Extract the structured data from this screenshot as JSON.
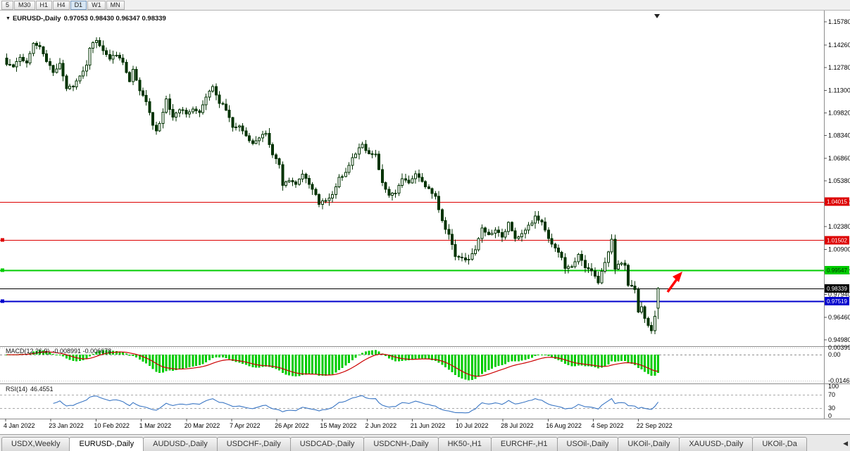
{
  "toolbar": {
    "timeframes": [
      {
        "label": "5",
        "active": false
      },
      {
        "label": "M30",
        "active": false
      },
      {
        "label": "H1",
        "active": false
      },
      {
        "label": "H4",
        "active": false
      },
      {
        "label": "D1",
        "active": true
      },
      {
        "label": "W1",
        "active": false
      },
      {
        "label": "MN",
        "active": false
      }
    ]
  },
  "header": {
    "menu_icon": "▼",
    "symbol": "EURUSD-,Daily",
    "ohlc": "0.97053 0.98430 0.96347 0.98339"
  },
  "chart_data": {
    "type": "candlestick",
    "symbol": "EURUSD",
    "timeframe": "Daily",
    "ohlc_current": {
      "open": 0.97053,
      "high": 0.9843,
      "low": 0.96347,
      "close": 0.98339
    },
    "y_axis": {
      "ticks": [
        "1.15780",
        "1.14260",
        "1.12780",
        "1.11300",
        "1.09820",
        "1.08340",
        "1.06860",
        "1.05380",
        "1.03900",
        "1.02380",
        "1.00900",
        "0.99420",
        "0.97940",
        "0.96460",
        "0.94980"
      ],
      "min": 0.9498,
      "max": 1.1578
    },
    "x_axis": {
      "labels": [
        "4 Jan 2022",
        "23 Jan 2022",
        "10 Feb 2022",
        "1 Mar 2022",
        "20 Mar 2022",
        "7 Apr 2022",
        "26 Apr 2022",
        "15 May 2022",
        "2 Jun 2022",
        "21 Jun 2022",
        "10 Jul 2022",
        "28 Jul 2022",
        "16 Aug 2022",
        "4 Sep 2022",
        "22 Sep 2022"
      ]
    },
    "levels": [
      {
        "value": "1.04015",
        "price": 1.04015,
        "color": "#dd0000",
        "tag_text": "#ffffff",
        "width": 1,
        "handle": false
      },
      {
        "value": "1.01502",
        "price": 1.01502,
        "color": "#dd0000",
        "tag_text": "#ffffff",
        "width": 1,
        "handle": true
      },
      {
        "value": "0.99547",
        "price": 0.99547,
        "color": "#00cc00",
        "tag_text": "#003300",
        "width": 2,
        "handle": true
      },
      {
        "value": "0.98339",
        "price": 0.98339,
        "color": "#000000",
        "tag_text": "#ffffff",
        "width": 1,
        "handle": false
      },
      {
        "value": "0.97519",
        "price": 0.97519,
        "color": "#0000cc",
        "tag_text": "#ffffff",
        "width": 2,
        "handle": true
      }
    ],
    "candle_count": 197,
    "close_path": [
      [
        0,
        1.13
      ],
      [
        2,
        1.129
      ],
      [
        4,
        1.135
      ],
      [
        6,
        1.131
      ],
      [
        8,
        1.1445
      ],
      [
        10,
        1.1415
      ],
      [
        12,
        1.132
      ],
      [
        14,
        1.1245
      ],
      [
        16,
        1.131
      ],
      [
        18,
        1.114
      ],
      [
        20,
        1.1155
      ],
      [
        22,
        1.123
      ],
      [
        24,
        1.13
      ],
      [
        25,
        1.141
      ],
      [
        27,
        1.146
      ],
      [
        29,
        1.138
      ],
      [
        31,
        1.134
      ],
      [
        33,
        1.1365
      ],
      [
        35,
        1.131
      ],
      [
        37,
        1.119
      ],
      [
        38,
        1.127
      ],
      [
        40,
        1.112
      ],
      [
        42,
        1.1065
      ],
      [
        44,
        1.09
      ],
      [
        45,
        1.0855
      ],
      [
        47,
        1.098
      ],
      [
        48,
        1.107
      ],
      [
        50,
        1.095
      ],
      [
        52,
        1.101
      ],
      [
        54,
        1.0985
      ],
      [
        56,
        1.1005
      ],
      [
        58,
        1.098
      ],
      [
        60,
        1.108
      ],
      [
        62,
        1.116
      ],
      [
        64,
        1.105
      ],
      [
        66,
        1.101
      ],
      [
        68,
        1.088
      ],
      [
        70,
        1.0905
      ],
      [
        72,
        1.083
      ],
      [
        74,
        1.079
      ],
      [
        76,
        1.0815
      ],
      [
        78,
        1.0855
      ],
      [
        80,
        1.071
      ],
      [
        82,
        1.064
      ],
      [
        83,
        1.0505
      ],
      [
        85,
        1.054
      ],
      [
        87,
        1.052
      ],
      [
        89,
        1.0575
      ],
      [
        91,
        1.052
      ],
      [
        93,
        1.044
      ],
      [
        94,
        1.0385
      ],
      [
        96,
        1.0415
      ],
      [
        98,
        1.044
      ],
      [
        100,
        1.056
      ],
      [
        102,
        1.0585
      ],
      [
        104,
        1.0685
      ],
      [
        107,
        1.078
      ],
      [
        109,
        1.0705
      ],
      [
        111,
        1.0715
      ],
      [
        113,
        1.052
      ],
      [
        115,
        1.0445
      ],
      [
        117,
        1.0455
      ],
      [
        119,
        1.055
      ],
      [
        121,
        1.0525
      ],
      [
        123,
        1.0585
      ],
      [
        125,
        1.0525
      ],
      [
        127,
        1.0485
      ],
      [
        129,
        1.0435
      ],
      [
        131,
        1.027
      ],
      [
        133,
        1.0185
      ],
      [
        135,
        1.0045
      ],
      [
        137,
        1.0035
      ],
      [
        139,
        1.002
      ],
      [
        141,
        1.0095
      ],
      [
        143,
        1.0225
      ],
      [
        145,
        1.0185
      ],
      [
        147,
        1.0225
      ],
      [
        149,
        1.0165
      ],
      [
        151,
        1.0265
      ],
      [
        153,
        1.0165
      ],
      [
        155,
        1.0185
      ],
      [
        157,
        1.024
      ],
      [
        159,
        1.03
      ],
      [
        161,
        1.026
      ],
      [
        163,
        1.0165
      ],
      [
        165,
        1.009
      ],
      [
        167,
        1.0045
      ],
      [
        168,
        0.996
      ],
      [
        170,
        0.9975
      ],
      [
        172,
        1.0055
      ],
      [
        174,
        0.9975
      ],
      [
        176,
        0.995
      ],
      [
        178,
        0.988
      ],
      [
        180,
        1.0
      ],
      [
        182,
        1.015
      ],
      [
        183,
        0.997
      ],
      [
        185,
        1.0005
      ],
      [
        186,
        0.9985
      ],
      [
        187,
        0.9845
      ],
      [
        189,
        0.9835
      ],
      [
        190,
        0.967
      ],
      [
        191,
        0.972
      ],
      [
        192,
        0.964
      ],
      [
        193,
        0.959
      ],
      [
        194,
        0.956
      ],
      [
        195,
        0.965
      ],
      [
        196,
        0.98339
      ]
    ],
    "colors": {
      "bull": "#ffffff",
      "bear": "#003300",
      "wick": "#003300",
      "macd_hist": "#00cc00",
      "macd_signal": "#cc0000",
      "rsi_line": "#3a76c4"
    },
    "indicators": {
      "macd": {
        "name": "MACD(12,26,9)",
        "values": "-0.008991 -0.006678",
        "fast": 12,
        "slow": 26,
        "signal": 9,
        "scale_ticks": [
          {
            "label": "0.00399",
            "value": 0.00399
          },
          {
            "label": "0.00",
            "value": 0
          },
          {
            "label": "-0.01469",
            "value": -0.01469
          }
        ]
      },
      "rsi": {
        "name": "RSI(14)",
        "value": "46.4551",
        "period": 14,
        "scale_ticks": [
          {
            "label": "100",
            "value": 100
          },
          {
            "label": "70",
            "value": 70
          },
          {
            "label": "30",
            "value": 30
          },
          {
            "label": "0",
            "value": 0
          }
        ],
        "guides": [
          70,
          30
        ]
      }
    },
    "annotations": [
      {
        "type": "arrow",
        "color": "#ff0000"
      }
    ]
  },
  "tabs": {
    "scroll_left_icon": "◀",
    "items": [
      {
        "label": "USDX,Weekly",
        "active": false
      },
      {
        "label": "EURUSD-,Daily",
        "active": true
      },
      {
        "label": "AUDUSD-,Daily",
        "active": false
      },
      {
        "label": "USDCHF-,Daily",
        "active": false
      },
      {
        "label": "USDCAD-,Daily",
        "active": false
      },
      {
        "label": "USDCNH-,Daily",
        "active": false
      },
      {
        "label": "HK50-,H1",
        "active": false
      },
      {
        "label": "EURCHF-,H1",
        "active": false
      },
      {
        "label": "USOil-,Daily",
        "active": false
      },
      {
        "label": "UKOil-,Daily",
        "active": false
      },
      {
        "label": "XAUUSD-,Daily",
        "active": false
      },
      {
        "label": "UKOil-,Da",
        "active": false
      }
    ]
  }
}
